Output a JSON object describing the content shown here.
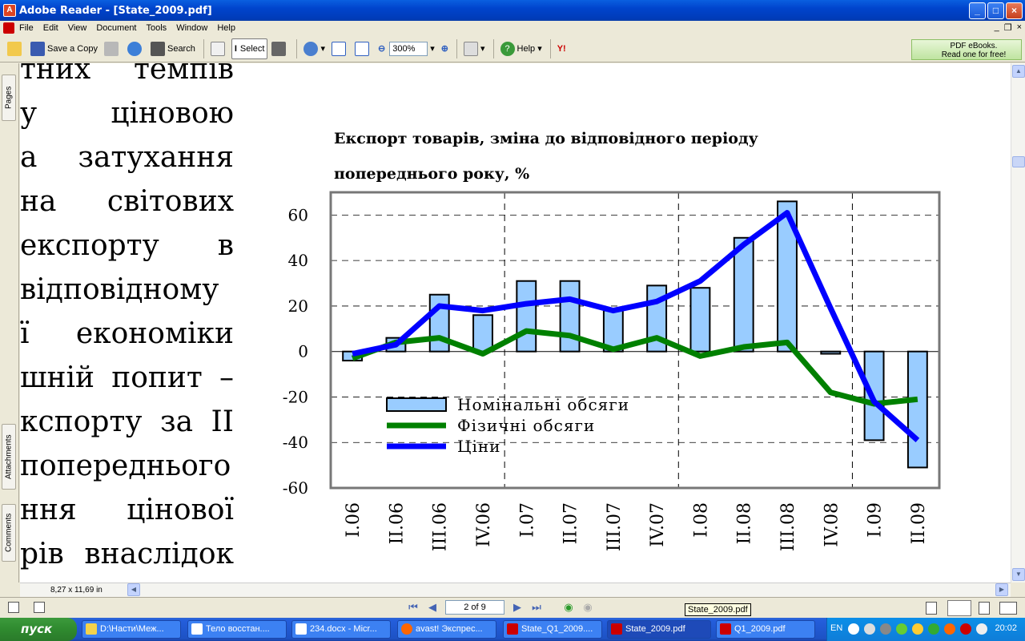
{
  "window": {
    "title": "Adobe Reader - [State_2009.pdf]"
  },
  "menu": [
    "File",
    "Edit",
    "View",
    "Document",
    "Tools",
    "Window",
    "Help"
  ],
  "toolbar": {
    "save_copy": "Save a Copy",
    "search": "Search",
    "select": "Select",
    "zoom": "300%",
    "help": "Help",
    "ad_line1": "PDF eBooks.",
    "ad_line2": "Read one for free!"
  },
  "sidepanel": {
    "pages": "Pages",
    "attachments": "Attachments",
    "comments": "Comments"
  },
  "document": {
    "body_lines": [
      "тних темпів",
      "у ціновою",
      "а затухання",
      "на світових",
      "експорту в",
      "відповідному",
      "ї економіки",
      "шній попит –",
      "кспорту за II",
      "попереднього",
      "ння цінової",
      "рів внаслідок"
    ],
    "page_size": "8,27 x 11,69 in"
  },
  "chart_data": {
    "type": "bar+line",
    "title_line1": "Експорт товарів, зміна до відповідного періоду",
    "title_line2": "попереднього року, %",
    "categories": [
      "I.06",
      "II.06",
      "III.06",
      "IV.06",
      "I.07",
      "II.07",
      "III.07",
      "IV.07",
      "I.08",
      "II.08",
      "III.08",
      "IV.08",
      "I.09",
      "II.09"
    ],
    "ylim": [
      -60,
      70
    ],
    "yticks": [
      60,
      40,
      20,
      0,
      -20,
      -40,
      -60
    ],
    "series": [
      {
        "name": "Номінальні обсяги",
        "type": "bar",
        "color": "#99ccff",
        "values": [
          -4,
          6,
          25,
          16,
          31,
          31,
          18,
          29,
          28,
          50,
          66,
          -1,
          -39,
          -51
        ]
      },
      {
        "name": "Фізичні обсяги",
        "type": "line",
        "color": "#008000",
        "values": [
          -3,
          4,
          6,
          -1,
          9,
          7,
          1,
          6,
          -2,
          2,
          4,
          -18,
          -23,
          -21
        ]
      },
      {
        "name": "Ціни",
        "type": "line",
        "color": "#0000ff",
        "values": [
          -1,
          3,
          20,
          18,
          21,
          23,
          18,
          22,
          31,
          47,
          61,
          19,
          -22,
          -39
        ]
      }
    ],
    "legend_position": "bottom-left"
  },
  "status": {
    "page_input": "2 of 9",
    "tooltip": "State_2009.pdf"
  },
  "taskbar": {
    "start": "пуск",
    "tasks": [
      "D:\\Насти\\Меж...",
      "Тело восстан....",
      "234.docx - Micr...",
      "avast! Экспрес...",
      "State_Q1_2009....",
      "State_2009.pdf",
      "Q1_2009.pdf"
    ],
    "lang": "EN",
    "clock": "20:02"
  }
}
